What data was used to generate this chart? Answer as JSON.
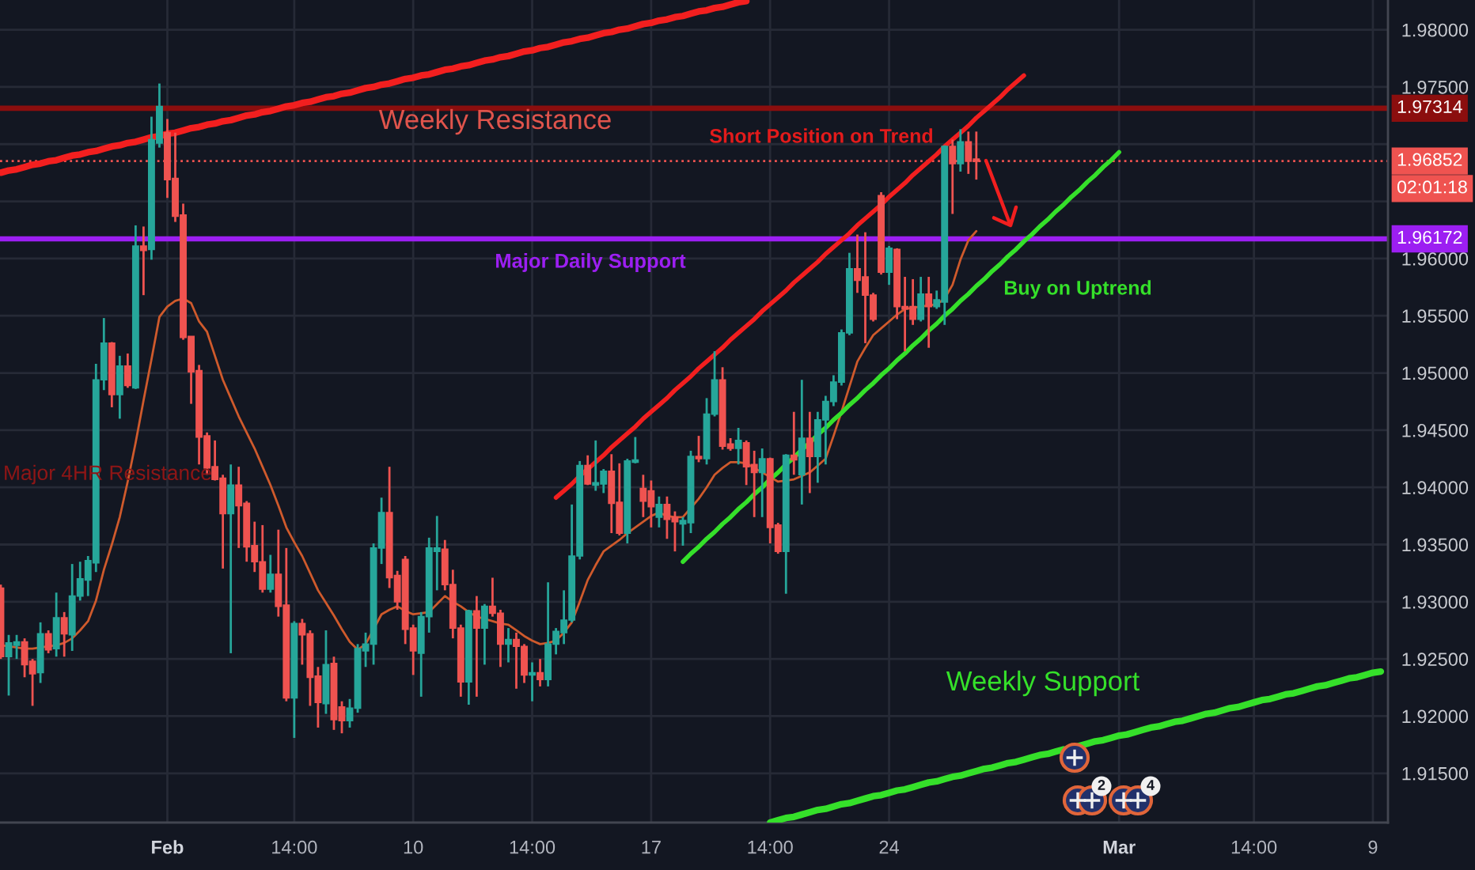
{
  "chart_data": {
    "type": "candlestick",
    "categories": [
      null,
      null,
      null,
      null,
      null,
      null,
      null,
      null,
      null,
      null,
      null,
      null,
      null,
      null,
      null,
      null,
      null,
      null,
      null,
      null,
      null,
      "Feb",
      null,
      null,
      null,
      null,
      null,
      null,
      null,
      null,
      null,
      null,
      null,
      null,
      null,
      null,
      null,
      "14:00",
      null,
      null,
      null,
      null,
      null,
      null,
      null,
      null,
      null,
      null,
      null,
      null,
      null,
      null,
      "10",
      null,
      null,
      null,
      null,
      null,
      null,
      null,
      null,
      null,
      null,
      null,
      null,
      null,
      null,
      "14:00",
      null,
      null,
      null,
      null,
      null,
      null,
      null,
      null,
      null,
      null,
      null,
      null,
      null,
      null,
      "17",
      null,
      null,
      null,
      null,
      null,
      null,
      null,
      null,
      null,
      null,
      null,
      null,
      null,
      null,
      "14:00",
      null,
      null,
      null,
      null,
      null,
      null,
      null,
      null,
      null,
      null,
      null,
      null,
      null,
      null,
      "24",
      null,
      null,
      null,
      null,
      null,
      null,
      null,
      null,
      null,
      null,
      null,
      null,
      null,
      null,
      null,
      null,
      null,
      null,
      null,
      null,
      null,
      null,
      null,
      null,
      null,
      null,
      null,
      null,
      "Mar",
      null,
      null,
      null,
      null,
      null,
      null,
      null,
      null,
      null,
      null,
      null,
      null,
      null,
      null,
      null,
      null,
      "14:00",
      null,
      null,
      null,
      null,
      null,
      null,
      null,
      null,
      null,
      null,
      null,
      null,
      null,
      null,
      "9",
      null
    ],
    "ohlc": [
      [
        1.9312,
        1.9315,
        1.925,
        1.9252
      ],
      [
        1.9252,
        1.9271,
        1.9218,
        1.9264
      ],
      [
        1.9262,
        1.9271,
        1.925,
        1.9265
      ],
      [
        1.9265,
        1.9268,
        1.9234,
        1.9245
      ],
      [
        1.9248,
        1.925,
        1.9209,
        1.9237
      ],
      [
        1.9238,
        1.9282,
        1.9229,
        1.9272
      ],
      [
        1.9272,
        1.9275,
        1.9255,
        1.9258
      ],
      [
        1.9259,
        1.9308,
        1.9252,
        1.9286
      ],
      [
        1.9286,
        1.9291,
        1.9252,
        1.9272
      ],
      [
        1.9271,
        1.9333,
        1.9257,
        1.9305
      ],
      [
        1.9305,
        1.9335,
        1.9301,
        1.932
      ],
      [
        1.9319,
        1.934,
        1.9305,
        1.9336
      ],
      [
        1.9334,
        1.9508,
        1.9326,
        1.9494
      ],
      [
        1.9494,
        1.9548,
        1.9485,
        1.9526
      ],
      [
        1.9526,
        1.9527,
        1.947,
        1.9481
      ],
      [
        1.9481,
        1.9515,
        1.946,
        1.9506
      ],
      [
        1.9506,
        1.9517,
        1.9487,
        1.9489
      ],
      [
        1.9487,
        1.9629,
        1.9486,
        1.9611
      ],
      [
        1.9611,
        1.9628,
        1.9568,
        1.9607
      ],
      [
        1.9608,
        1.9724,
        1.9599,
        1.9704
      ],
      [
        1.9701,
        1.9753,
        1.9697,
        1.9733
      ],
      [
        1.971,
        1.9722,
        1.9653,
        1.9669
      ],
      [
        1.967,
        1.971,
        1.9632,
        1.9637
      ],
      [
        1.9638,
        1.9648,
        1.9529,
        1.9531
      ],
      [
        1.9532,
        1.9532,
        1.9473,
        1.9501
      ],
      [
        1.9502,
        1.9507,
        1.942,
        1.9444
      ],
      [
        1.9445,
        1.9448,
        1.9411,
        1.9417
      ],
      [
        1.9418,
        1.9441,
        1.9406,
        1.9407
      ],
      [
        1.9408,
        1.9411,
        1.9329,
        1.9377
      ],
      [
        1.9377,
        1.942,
        1.9255,
        1.9402
      ],
      [
        1.9402,
        1.9418,
        1.9347,
        1.9384
      ],
      [
        1.9386,
        1.9388,
        1.9335,
        1.9348
      ],
      [
        1.9349,
        1.937,
        1.9326,
        1.9335
      ],
      [
        1.9335,
        1.9367,
        1.9308,
        1.9311
      ],
      [
        1.9311,
        1.9341,
        1.9308,
        1.9324
      ],
      [
        1.9324,
        1.9363,
        1.9287,
        1.9296
      ],
      [
        1.9297,
        1.9347,
        1.9213,
        1.9216
      ],
      [
        1.9216,
        1.9283,
        1.9181,
        1.9281
      ],
      [
        1.9281,
        1.9285,
        1.9245,
        1.9271
      ],
      [
        1.9272,
        1.9275,
        1.9209,
        1.9234
      ],
      [
        1.9235,
        1.9243,
        1.919,
        1.9212
      ],
      [
        1.9211,
        1.9275,
        1.9202,
        1.9245
      ],
      [
        1.9246,
        1.9252,
        1.9188,
        1.9197
      ],
      [
        1.9208,
        1.9213,
        1.9185,
        1.9196
      ],
      [
        1.9196,
        1.9215,
        1.919,
        1.9207
      ],
      [
        1.9207,
        1.9263,
        1.9203,
        1.9259
      ],
      [
        1.9257,
        1.9273,
        1.9243,
        1.9263
      ],
      [
        1.9263,
        1.9351,
        1.9245,
        1.9347
      ],
      [
        1.9347,
        1.9391,
        1.9333,
        1.9378
      ],
      [
        1.9378,
        1.9418,
        1.9312,
        1.9321
      ],
      [
        1.9323,
        1.9327,
        1.9293,
        1.93
      ],
      [
        1.9337,
        1.934,
        1.9263,
        1.9276
      ],
      [
        1.9277,
        1.928,
        1.9236,
        1.9257
      ],
      [
        1.9255,
        1.9291,
        1.9217,
        1.9287
      ],
      [
        1.9287,
        1.9356,
        1.9273,
        1.9347
      ],
      [
        1.9344,
        1.9375,
        1.931,
        1.9347
      ],
      [
        1.9346,
        1.9354,
        1.931,
        1.9315
      ],
      [
        1.9315,
        1.9328,
        1.9268,
        1.9277
      ],
      [
        1.9277,
        1.928,
        1.9217,
        1.923
      ],
      [
        1.923,
        1.9293,
        1.921,
        1.9292
      ],
      [
        1.9292,
        1.9305,
        1.9217,
        1.9277
      ],
      [
        1.9277,
        1.9298,
        1.9245,
        1.9296
      ],
      [
        1.9296,
        1.9321,
        1.9287,
        1.929
      ],
      [
        1.929,
        1.9293,
        1.9243,
        1.9263
      ],
      [
        1.9263,
        1.9277,
        1.9247,
        1.9267
      ],
      [
        1.9267,
        1.9273,
        1.9224,
        1.9261
      ],
      [
        1.9261,
        1.9263,
        1.9229,
        1.9236
      ],
      [
        1.9236,
        1.9247,
        1.9213,
        1.9238
      ],
      [
        1.9238,
        1.925,
        1.9226,
        1.9232
      ],
      [
        1.9232,
        1.9317,
        1.9226,
        1.9263
      ],
      [
        1.9263,
        1.9277,
        1.9254,
        1.9274
      ],
      [
        1.9273,
        1.931,
        1.9263,
        1.9284
      ],
      [
        1.9284,
        1.9385,
        1.9282,
        1.934
      ],
      [
        1.934,
        1.9423,
        1.9337,
        1.9419
      ],
      [
        1.9419,
        1.9428,
        1.9402,
        1.9403
      ],
      [
        1.9402,
        1.9441,
        1.9397,
        1.9404
      ],
      [
        1.9403,
        1.9416,
        1.9395,
        1.9414
      ],
      [
        1.9414,
        1.9429,
        1.936,
        1.9386
      ],
      [
        1.9387,
        1.9421,
        1.9358,
        1.936
      ],
      [
        1.936,
        1.9425,
        1.9351,
        1.9423
      ],
      [
        1.9422,
        1.9444,
        1.9421,
        1.9424
      ],
      [
        1.9399,
        1.9411,
        1.9374,
        1.9388
      ],
      [
        1.9397,
        1.9406,
        1.9365,
        1.9383
      ],
      [
        1.9374,
        1.9392,
        1.9365,
        1.9385
      ],
      [
        1.9385,
        1.9392,
        1.9355,
        1.9372
      ],
      [
        1.9374,
        1.9379,
        1.9344,
        1.937
      ],
      [
        1.9368,
        1.9374,
        1.9349,
        1.9371
      ],
      [
        1.9369,
        1.9432,
        1.936,
        1.9427
      ],
      [
        1.9427,
        1.9445,
        1.9422,
        1.9425
      ],
      [
        1.9425,
        1.9478,
        1.942,
        1.9464
      ],
      [
        1.9464,
        1.9519,
        1.9462,
        1.9494
      ],
      [
        1.9494,
        1.9505,
        1.9433,
        1.9436
      ],
      [
        1.9438,
        1.9443,
        1.9432,
        1.9434
      ],
      [
        1.9434,
        1.9452,
        1.942,
        1.9441
      ],
      [
        1.9439,
        1.9441,
        1.9402,
        1.9418
      ],
      [
        1.942,
        1.9432,
        1.9374,
        1.9413
      ],
      [
        1.9413,
        1.9434,
        1.9374,
        1.9425
      ],
      [
        1.9425,
        1.9426,
        1.9351,
        1.9365
      ],
      [
        1.9367,
        1.9369,
        1.9342,
        1.9344
      ],
      [
        1.9344,
        1.9429,
        1.9307,
        1.9428
      ],
      [
        1.9428,
        1.9466,
        1.9411,
        1.9424
      ],
      [
        1.9411,
        1.9494,
        1.9385,
        1.9443
      ],
      [
        1.9443,
        1.9466,
        1.9395,
        1.9427
      ],
      [
        1.9427,
        1.9466,
        1.9404,
        1.9459
      ],
      [
        1.9459,
        1.948,
        1.942,
        1.9475
      ],
      [
        1.9475,
        1.9498,
        1.9471,
        1.9492
      ],
      [
        1.9492,
        1.9538,
        1.9489,
        1.9535
      ],
      [
        1.9535,
        1.9605,
        1.9533,
        1.9591
      ],
      [
        1.9591,
        1.9621,
        1.957,
        1.9581
      ],
      [
        1.9584,
        1.9623,
        1.9526,
        1.9568
      ],
      [
        1.9568,
        1.957,
        1.9545,
        1.9547
      ],
      [
        1.9655,
        1.9658,
        1.9586,
        1.9588
      ],
      [
        1.9588,
        1.9611,
        1.9577,
        1.9609
      ],
      [
        1.9608,
        1.9609,
        1.9547,
        1.9558
      ],
      [
        1.9558,
        1.9584,
        1.9519,
        1.9556
      ],
      [
        1.9558,
        1.9582,
        1.9542,
        1.9547
      ],
      [
        1.9547,
        1.9584,
        1.9545,
        1.9569
      ],
      [
        1.9569,
        1.9584,
        1.9522,
        1.9558
      ],
      [
        1.9558,
        1.9572,
        1.9556,
        1.9564
      ],
      [
        1.9562,
        1.9699,
        1.9542,
        1.9698
      ],
      [
        1.9698,
        1.9704,
        1.9639,
        1.9683
      ],
      [
        1.9683,
        1.9713,
        1.9676,
        1.9702
      ],
      [
        1.9702,
        1.9711,
        1.9674,
        1.9685
      ],
      [
        1.9687,
        1.9711,
        1.9669,
        1.9685
      ],
      null,
      null,
      null,
      null,
      null,
      null,
      null,
      null,
      null,
      null,
      null,
      null,
      null,
      null,
      null,
      null,
      null,
      null,
      null,
      null,
      null,
      null,
      null,
      null,
      null,
      null,
      null,
      null,
      null,
      null,
      null,
      null,
      null,
      null,
      null,
      null,
      null,
      null,
      null,
      null,
      null,
      null,
      null,
      null,
      null,
      null,
      null,
      null,
      null,
      null,
      null
    ],
    "colors": [
      "#ef5350",
      "#26a69a",
      "#26a69a",
      "#ef5350",
      "#ef5350",
      "#26a69a",
      "#ef5350",
      "#26a69a",
      "#ef5350",
      "#26a69a",
      "#26a69a",
      "#26a69a",
      "#26a69a",
      "#26a69a",
      "#ef5350",
      "#26a69a",
      "#ef5350",
      "#26a69a",
      "#ef5350",
      "#26a69a",
      "#26a69a",
      "#ef5350",
      "#ef5350",
      "#ef5350",
      "#ef5350",
      "#ef5350",
      "#ef5350",
      "#ef5350",
      "#ef5350",
      "#26a69a",
      "#ef5350",
      "#ef5350",
      "#ef5350",
      "#ef5350",
      "#26a69a",
      "#ef5350",
      "#ef5350",
      "#26a69a",
      "#ef5350",
      "#ef5350",
      "#ef5350",
      "#26a69a",
      "#ef5350",
      "#ef5350",
      "#26a69a",
      "#26a69a",
      "#26a69a",
      "#26a69a",
      "#26a69a",
      "#ef5350",
      "#ef5350",
      "#ef5350",
      "#ef5350",
      "#26a69a",
      "#26a69a",
      "#26a69a",
      "#ef5350",
      "#ef5350",
      "#ef5350",
      "#26a69a",
      "#ef5350",
      "#26a69a",
      "#ef5350",
      "#ef5350",
      "#26a69a",
      "#ef5350",
      "#ef5350",
      "#26a69a",
      "#ef5350",
      "#26a69a",
      "#26a69a",
      "#26a69a",
      "#26a69a",
      "#26a69a",
      "#ef5350",
      "#26a69a",
      "#26a69a",
      "#ef5350",
      "#ef5350",
      "#26a69a",
      "#26a69a",
      "#ef5350",
      "#ef5350",
      "#26a69a",
      "#ef5350",
      "#ef5350",
      "#26a69a",
      "#26a69a",
      "#ef5350",
      "#26a69a",
      "#26a69a",
      "#ef5350",
      "#ef5350",
      "#26a69a",
      "#ef5350",
      "#ef5350",
      "#26a69a",
      "#ef5350",
      "#ef5350",
      "#26a69a",
      "#ef5350",
      "#26a69a",
      "#ef5350",
      "#26a69a",
      "#26a69a",
      "#26a69a",
      "#26a69a",
      "#26a69a",
      "#ef5350",
      "#ef5350",
      "#ef5350",
      "#ef5350",
      "#26a69a",
      "#ef5350",
      "#ef5350",
      "#ef5350",
      "#26a69a",
      "#ef5350",
      "#26a69a",
      "#26a69a",
      "#ef5350",
      "#26a69a",
      "#ef5350",
      "#ef5350",
      null,
      null,
      null,
      null,
      null,
      null,
      null,
      null,
      null,
      null,
      null,
      null,
      null,
      null,
      null,
      null,
      null,
      null,
      null,
      null,
      null,
      null,
      null,
      null,
      null,
      null,
      null,
      null,
      null,
      null,
      null,
      null,
      null,
      null,
      null,
      null,
      null,
      null,
      null,
      null,
      null,
      null,
      null,
      null,
      null,
      null,
      null,
      null,
      null,
      null,
      null
    ],
    "series": [
      {
        "type": "line",
        "color": "#cf5a2c",
        "values": [
          1.9262,
          1.9261,
          1.926,
          1.9259,
          1.9259,
          1.926,
          1.9261,
          1.9262,
          1.9264,
          1.9268,
          1.9275,
          1.9283,
          1.9301,
          1.9328,
          1.935,
          1.9374,
          1.9405,
          1.9439,
          1.9476,
          1.9512,
          1.9549,
          1.9558,
          1.9563,
          1.9565,
          1.9561,
          1.9545,
          1.9536,
          1.9515,
          1.9494,
          1.9478,
          1.9462,
          1.9448,
          1.9434,
          1.9418,
          1.9402,
          1.9384,
          1.9365,
          1.9352,
          1.934,
          1.9325,
          1.931,
          1.9299,
          1.9288,
          1.9276,
          1.9265,
          1.9258,
          1.9263,
          1.9276,
          1.9289,
          1.9293,
          1.9296,
          1.9292,
          1.9289,
          1.929,
          1.9291,
          1.9298,
          1.9305,
          1.93,
          1.9296,
          1.9291,
          1.9287,
          1.9285,
          1.9283,
          1.9281,
          1.928,
          1.9275,
          1.927,
          1.9266,
          1.9263,
          1.9264,
          1.9266,
          1.9273,
          1.9282,
          1.93,
          1.9319,
          1.9332,
          1.9344,
          1.9349,
          1.9354,
          1.936,
          1.9365,
          1.937,
          1.9375,
          1.9378,
          1.9375,
          1.9374,
          1.9374,
          1.9382,
          1.939,
          1.94,
          1.9411,
          1.9417,
          1.9422,
          1.9422,
          1.9421,
          1.9417,
          1.9413,
          1.9409,
          1.9405,
          1.9406,
          1.9407,
          1.941,
          1.9413,
          1.9419,
          1.9425,
          1.9445,
          1.9466,
          1.9488,
          1.951,
          1.9522,
          1.9533,
          1.9539,
          1.9545,
          1.9551,
          1.9556,
          1.9557,
          1.9558,
          1.9559,
          1.956,
          1.9565,
          1.9577,
          1.9599,
          1.9616,
          1.9624,
          null,
          null,
          null,
          null,
          null,
          null,
          null,
          null,
          null,
          null,
          null,
          null,
          null,
          null,
          null,
          null,
          null,
          null,
          null,
          null,
          null,
          null,
          null,
          null,
          null,
          null,
          null,
          null,
          null,
          null,
          null,
          null,
          null,
          null,
          null,
          null,
          null,
          null,
          null,
          null,
          null,
          null,
          null,
          null,
          null,
          null,
          null,
          null,
          null,
          null,
          null
        ]
      },
      {
        "type": "line",
        "color": "#f21f1f",
        "values": [
          1.9675,
          1.9677,
          1.9678,
          1.968,
          1.9682,
          1.9683,
          1.9685,
          1.9686,
          1.9688,
          1.969,
          1.9691,
          1.9693,
          1.9694,
          1.9696,
          1.9698,
          1.9699,
          1.9701,
          1.9702,
          1.9704,
          1.9706,
          1.9707,
          1.9709,
          1.971,
          1.9712,
          1.9714,
          1.9715,
          1.9717,
          1.9718,
          1.972,
          1.9721,
          1.9723,
          1.9725,
          1.9726,
          1.9728,
          1.9729,
          1.9731,
          1.9733,
          1.9734,
          1.9736,
          1.9737,
          1.9739,
          1.9741,
          1.9742,
          1.9744,
          1.9745,
          1.9747,
          1.9749,
          1.975,
          1.9752,
          1.9753,
          1.9755,
          1.9757,
          1.9758,
          1.976,
          1.9761,
          1.9763,
          1.9765,
          1.9766,
          1.9768,
          1.9769,
          1.9771,
          1.9773,
          1.9774,
          1.9776,
          1.9777,
          1.9779,
          1.9781,
          1.9782,
          1.9784,
          1.9785,
          1.9787,
          1.9789,
          1.979,
          1.9792,
          1.9793,
          1.9795,
          1.9797,
          1.9798,
          1.98,
          1.9801,
          1.9803,
          1.9805,
          1.9806,
          1.9808,
          1.9809,
          1.9811,
          1.9812,
          1.9814,
          1.9816,
          1.9817,
          1.9819,
          1.982,
          1.9822,
          1.9824,
          1.9825,
          null,
          null,
          null,
          null,
          null,
          null,
          null,
          null,
          null,
          null,
          null,
          null,
          null,
          null,
          null,
          null,
          null,
          null,
          null,
          null,
          null,
          null,
          null,
          null,
          null,
          null,
          null,
          null,
          null,
          null,
          null,
          null,
          null,
          null,
          null,
          null,
          null,
          null,
          null,
          null,
          null,
          null,
          null,
          null,
          null,
          null,
          null,
          null,
          null,
          null,
          null,
          null,
          null,
          null,
          null,
          null,
          null,
          null,
          null,
          null,
          null,
          null,
          null,
          null,
          null,
          null,
          null,
          null,
          null,
          null,
          null,
          null,
          null,
          null,
          null,
          null,
          null,
          null,
          null,
          null
        ]
      },
      {
        "type": "line",
        "color": "#f21f1f",
        "values": [
          null,
          null,
          null,
          null,
          null,
          null,
          null,
          null,
          null,
          null,
          null,
          null,
          null,
          null,
          null,
          null,
          null,
          null,
          null,
          null,
          null,
          null,
          null,
          null,
          null,
          null,
          null,
          null,
          null,
          null,
          null,
          null,
          null,
          null,
          null,
          null,
          null,
          null,
          null,
          null,
          null,
          null,
          null,
          null,
          null,
          null,
          null,
          null,
          null,
          null,
          null,
          null,
          null,
          null,
          null,
          null,
          null,
          null,
          null,
          null,
          null,
          null,
          null,
          null,
          null,
          null,
          null,
          null,
          null,
          null,
          1.9391,
          1.9397,
          1.9403,
          1.941,
          1.9416,
          1.9422,
          1.9428,
          1.9435,
          1.9441,
          1.9447,
          1.9453,
          1.946,
          1.9466,
          1.9472,
          1.9478,
          1.9485,
          1.9491,
          1.9497,
          1.9504,
          1.951,
          1.9516,
          1.9522,
          1.9529,
          1.9535,
          1.9541,
          1.9547,
          1.9554,
          1.956,
          1.9566,
          1.9572,
          1.9579,
          1.9585,
          1.9591,
          1.9597,
          1.9604,
          1.961,
          1.9616,
          1.9622,
          1.9629,
          1.9635,
          1.9641,
          1.9647,
          1.9654,
          1.966,
          1.9666,
          1.9673,
          1.9679,
          1.9685,
          1.9691,
          1.9698,
          1.9704,
          1.971,
          1.9716,
          1.9723,
          1.9729,
          1.9735,
          1.9741,
          1.9748,
          1.9754,
          1.976,
          null,
          null,
          null,
          null,
          null,
          null,
          null,
          null,
          null,
          null,
          null,
          null,
          null,
          null,
          null,
          null,
          null,
          null,
          null,
          null,
          null,
          null,
          null,
          null,
          null,
          null,
          null,
          null,
          null,
          null,
          null,
          null,
          null,
          null,
          null,
          null,
          null,
          null,
          null,
          null,
          null,
          null,
          null,
          null,
          null
        ]
      },
      {
        "type": "line",
        "color": "#35e02a",
        "values": [
          null,
          null,
          null,
          null,
          null,
          null,
          null,
          null,
          null,
          null,
          null,
          null,
          null,
          null,
          null,
          null,
          null,
          null,
          null,
          null,
          null,
          null,
          null,
          null,
          null,
          null,
          null,
          null,
          null,
          null,
          null,
          null,
          null,
          null,
          null,
          null,
          null,
          null,
          null,
          null,
          null,
          null,
          null,
          null,
          null,
          null,
          null,
          null,
          null,
          null,
          null,
          null,
          null,
          null,
          null,
          null,
          null,
          null,
          null,
          null,
          null,
          null,
          null,
          null,
          null,
          null,
          null,
          null,
          null,
          null,
          null,
          null,
          null,
          null,
          null,
          null,
          null,
          null,
          null,
          null,
          null,
          null,
          null,
          null,
          null,
          null,
          1.9335,
          1.9342,
          1.9348,
          1.9355,
          1.9361,
          1.9368,
          1.9374,
          1.9381,
          1.9387,
          1.9394,
          1.94,
          1.9407,
          1.9413,
          1.942,
          1.9426,
          1.9433,
          1.9439,
          1.9446,
          1.9452,
          1.9459,
          1.9465,
          1.9472,
          1.9478,
          1.9485,
          1.9491,
          1.9498,
          1.9504,
          1.9511,
          1.9517,
          1.9524,
          1.953,
          1.9537,
          1.9543,
          1.955,
          1.9556,
          1.9563,
          1.9569,
          1.9576,
          1.9582,
          1.9589,
          1.9595,
          1.9602,
          1.9608,
          1.9615,
          1.9621,
          1.9628,
          1.9634,
          1.9641,
          1.9647,
          1.9654,
          1.966,
          1.9667,
          1.9673,
          1.968,
          1.9686,
          1.9693,
          null,
          null,
          null,
          null,
          null,
          null,
          null,
          null,
          null,
          null,
          null,
          null,
          null,
          null,
          null,
          null,
          null,
          null,
          null,
          null,
          null,
          null,
          null,
          null,
          null,
          null,
          null,
          null,
          null,
          null,
          null,
          null,
          null
        ]
      },
      {
        "type": "line",
        "color": "#35e02a",
        "values": [
          null,
          null,
          null,
          null,
          null,
          null,
          null,
          null,
          null,
          null,
          null,
          null,
          null,
          null,
          null,
          null,
          null,
          null,
          null,
          null,
          null,
          null,
          null,
          null,
          null,
          null,
          null,
          null,
          null,
          null,
          null,
          null,
          null,
          null,
          null,
          null,
          null,
          null,
          null,
          null,
          null,
          null,
          null,
          null,
          null,
          null,
          null,
          null,
          null,
          null,
          null,
          null,
          null,
          null,
          null,
          null,
          null,
          null,
          null,
          null,
          null,
          null,
          null,
          null,
          null,
          null,
          null,
          null,
          null,
          null,
          null,
          null,
          null,
          null,
          null,
          null,
          null,
          null,
          null,
          null,
          null,
          null,
          null,
          null,
          null,
          null,
          null,
          null,
          null,
          null,
          null,
          null,
          null,
          null,
          null,
          null,
          null,
          1.9107,
          1.9109,
          1.9111,
          1.9112,
          1.9114,
          1.9116,
          1.9118,
          1.9119,
          1.9121,
          1.9123,
          1.9124,
          1.9126,
          1.9128,
          1.913,
          1.9131,
          1.9133,
          1.9135,
          1.9136,
          1.9138,
          1.914,
          1.9142,
          1.9143,
          1.9145,
          1.9147,
          1.9148,
          1.915,
          1.9152,
          1.9154,
          1.9155,
          1.9157,
          1.9159,
          1.916,
          1.9162,
          1.9164,
          1.9166,
          1.9167,
          1.9169,
          1.9171,
          null,
          1.9174,
          1.9176,
          1.9178,
          1.9179,
          1.9181,
          1.9183,
          1.9184,
          1.9186,
          1.9188,
          1.919,
          1.9191,
          1.9193,
          1.9195,
          1.9196,
          1.9198,
          1.92,
          1.9202,
          1.9203,
          1.9205,
          1.9207,
          1.9208,
          1.921,
          1.9212,
          1.9214,
          1.9215,
          1.9217,
          1.9219,
          1.922,
          1.9222,
          1.9224,
          1.9226,
          1.9227,
          1.9229,
          1.9231,
          1.9233,
          1.9234,
          1.9236,
          1.9238,
          1.9239
        ]
      }
    ],
    "ylim": [
      1.9107,
      1.9826
    ],
    "yticks": [
      {
        "value": 1.915,
        "label": "1.91500"
      },
      {
        "value": 1.92,
        "label": "1.92000"
      },
      {
        "value": 1.925,
        "label": "1.92500"
      },
      {
        "value": 1.93,
        "label": "1.93000"
      },
      {
        "value": 1.935,
        "label": "1.93500"
      },
      {
        "value": 1.94,
        "label": "1.94000"
      },
      {
        "value": 1.945,
        "label": "1.94500"
      },
      {
        "value": 1.95,
        "label": "1.95000"
      },
      {
        "value": 1.955,
        "label": "1.95500"
      },
      {
        "value": 1.96,
        "label": "1.96000"
      },
      {
        "value": 1.965,
        "label": null
      },
      {
        "value": 1.97,
        "label": null
      },
      {
        "value": 1.975,
        "label": "1.97500"
      },
      {
        "value": 1.98,
        "label": "1.98000"
      }
    ],
    "grid": true,
    "ref_lines": [
      {
        "axis": "y",
        "value": 1.97314,
        "label": "1.97314",
        "color": "#8b0e0e"
      },
      {
        "axis": "y",
        "value": 1.96852,
        "label": "1.96852",
        "color": "#ef5350",
        "line_style": "dotted"
      },
      {
        "axis": "y",
        "value": 1.96172,
        "label": "1.96172",
        "color": "#9c1ff2"
      }
    ],
    "annotations": [
      "Weekly Resistance",
      "Short Position on Trend",
      "Major Daily Support",
      "Buy on Uptrend",
      "Weekly Support",
      "Major 4HR Resistance",
      "02:01:18",
      "2",
      "4"
    ]
  }
}
